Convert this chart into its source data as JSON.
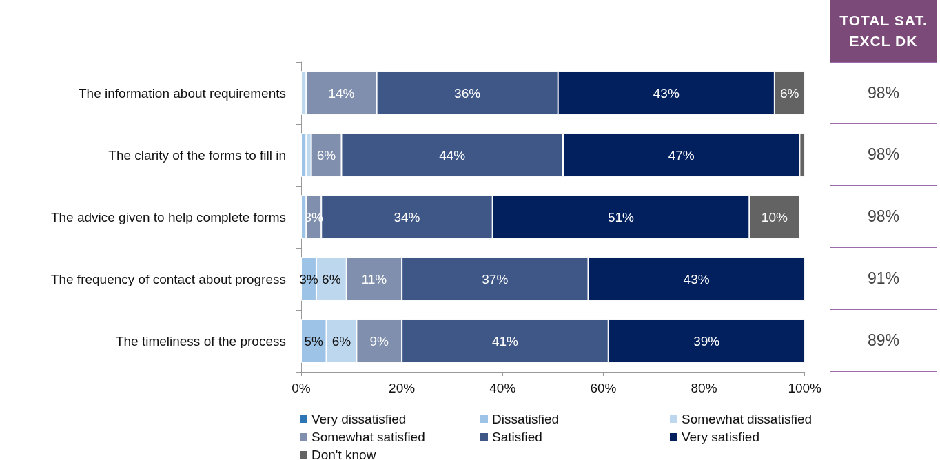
{
  "chart_data": [
    {
      "type": "bar",
      "orientation": "horizontal",
      "stacked": true,
      "categories": [
        "The information about requirements",
        "The clarity of the forms to fill in",
        "The advice given to help complete forms",
        "The frequency of contact about progress",
        "The timeliness of the process"
      ],
      "series": [
        {
          "name": "Very dissatisfied",
          "color": "#2e75b6",
          "values": [
            0,
            0,
            0,
            0,
            0
          ],
          "value_labels": [
            null,
            null,
            null,
            null,
            null
          ]
        },
        {
          "name": "Dissatisfied",
          "color": "#9dc3e6",
          "values": [
            0,
            1,
            1,
            3,
            5
          ],
          "value_labels": [
            null,
            null,
            null,
            "3%",
            "5%"
          ]
        },
        {
          "name": "Somewhat dissatisfied",
          "color": "#bdd7ee",
          "values": [
            1,
            1,
            0,
            6,
            6
          ],
          "value_labels": [
            null,
            null,
            null,
            "6%",
            "6%"
          ]
        },
        {
          "name": "Somewhat satisfied",
          "color": "#7f8fad",
          "values": [
            14,
            6,
            3,
            11,
            9
          ],
          "value_labels": [
            "14%",
            "6%",
            "3%",
            "11%",
            "9%"
          ]
        },
        {
          "name": "Satisfied",
          "color": "#3f5787",
          "values": [
            36,
            44,
            34,
            37,
            41
          ],
          "value_labels": [
            "36%",
            "44%",
            "34%",
            "37%",
            "41%"
          ]
        },
        {
          "name": "Very satisfied",
          "color": "#02205e",
          "values": [
            43,
            47,
            51,
            43,
            39
          ],
          "value_labels": [
            "43%",
            "47%",
            "51%",
            "43%",
            "39%"
          ]
        },
        {
          "name": "Don't know",
          "color": "#636363",
          "values": [
            6,
            1,
            10,
            0,
            0
          ],
          "value_labels": [
            "6%",
            null,
            "10%",
            null,
            null
          ]
        }
      ],
      "xlim": [
        0,
        100
      ],
      "xticks": [
        {
          "value": 0,
          "label": "0%"
        },
        {
          "value": 20,
          "label": "20%"
        },
        {
          "value": 40,
          "label": "40%"
        },
        {
          "value": 60,
          "label": "60%"
        },
        {
          "value": 80,
          "label": "80%"
        },
        {
          "value": 100,
          "label": "100%"
        }
      ],
      "grid": false,
      "legend": "bottom"
    },
    {
      "type": "other",
      "title": "TOTAL SAT. EXCL DK",
      "annotations": [
        "98%",
        "98%",
        "98%",
        "91%",
        "89%"
      ]
    }
  ]
}
